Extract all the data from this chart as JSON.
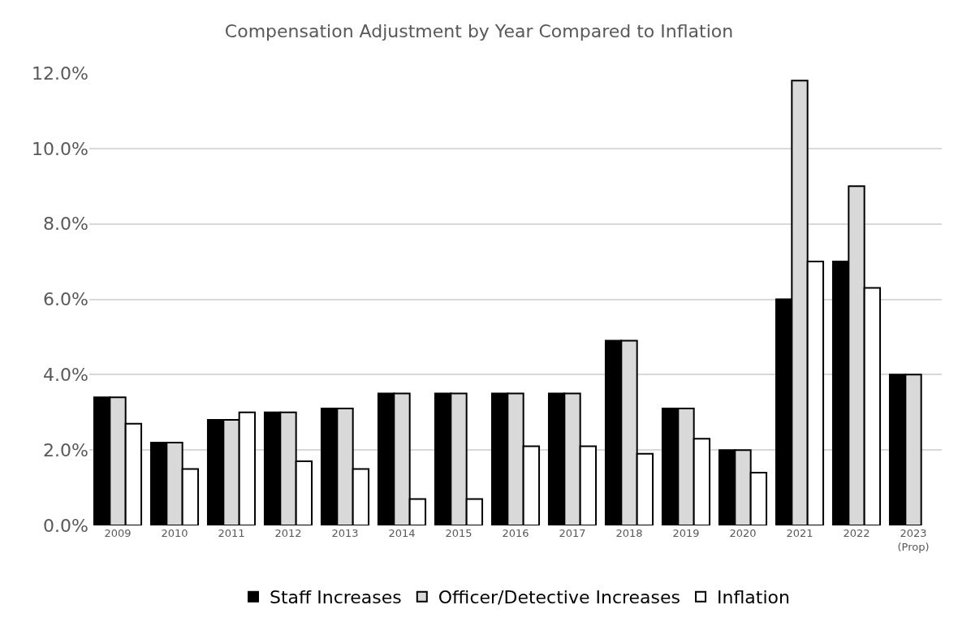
{
  "chart_data": {
    "type": "bar",
    "title": "Compensation Adjustment by Year Compared to Inflation",
    "categories": [
      "2009",
      "2010",
      "2011",
      "2012",
      "2013",
      "2014",
      "2015",
      "2016",
      "2017",
      "2018",
      "2019",
      "2020",
      "2021",
      "2022",
      "2023\n(Prop)"
    ],
    "series": [
      {
        "name": "Staff Increases",
        "color": "#000000",
        "values": [
          3.4,
          2.2,
          2.8,
          3.0,
          3.1,
          3.5,
          3.5,
          3.5,
          3.5,
          4.9,
          3.1,
          2.0,
          6.0,
          7.0,
          4.0
        ]
      },
      {
        "name": "Officer/Detective Increases",
        "color": "#d9d9d9",
        "values": [
          3.4,
          2.2,
          2.8,
          3.0,
          3.1,
          3.5,
          3.5,
          3.5,
          3.5,
          4.9,
          3.1,
          2.0,
          11.8,
          9.0,
          4.0
        ]
      },
      {
        "name": "Inflation",
        "color": "#ffffff",
        "values": [
          2.7,
          1.5,
          3.0,
          1.7,
          1.5,
          0.7,
          0.7,
          2.1,
          2.1,
          1.9,
          2.3,
          1.4,
          7.0,
          6.3,
          null
        ]
      }
    ],
    "ylim": [
      0,
      12
    ],
    "yticks": [
      {
        "value": 0,
        "label": "0.0%"
      },
      {
        "value": 2,
        "label": "2.0%"
      },
      {
        "value": 4,
        "label": "4.0%"
      },
      {
        "value": 6,
        "label": "6.0%"
      },
      {
        "value": 8,
        "label": "8.0%"
      },
      {
        "value": 10,
        "label": "10.0%"
      },
      {
        "value": 12,
        "label": "12.0%"
      }
    ],
    "grid": "y",
    "legend": "bottom"
  }
}
